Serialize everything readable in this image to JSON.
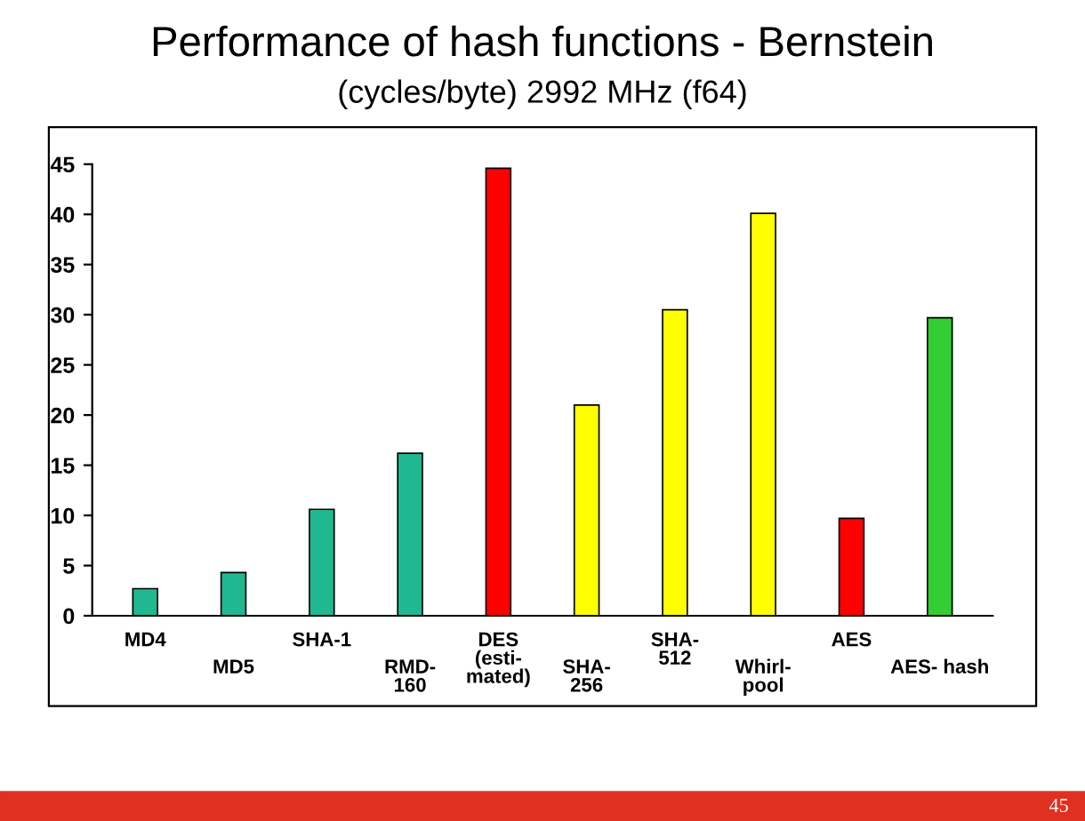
{
  "chart_data": {
    "type": "bar",
    "title": "Performance of hash functions - Bernstein",
    "subtitle": "(cycles/byte) 2992 MHz (f64)",
    "categories": [
      "MD4",
      "MD5",
      "SHA-1",
      "RMD-\n160",
      "DES\n(esti-\nmated)",
      "SHA-\n256",
      "SHA-\n512",
      "Whirl-\npool",
      "AES",
      "AES- hash"
    ],
    "values": [
      2.7,
      4.3,
      10.6,
      16.2,
      44.6,
      21.0,
      30.5,
      40.1,
      9.7,
      29.7
    ],
    "colors": [
      "#20b890",
      "#20b890",
      "#20b890",
      "#20b890",
      "#ff0000",
      "#ffff00",
      "#ffff00",
      "#ffff00",
      "#ff0000",
      "#33cc33"
    ],
    "ylim": [
      0,
      45
    ],
    "yticks": [
      0,
      5,
      10,
      15,
      20,
      25,
      30,
      35,
      40,
      45
    ],
    "grid": false,
    "annotations": [
      "45"
    ]
  }
}
